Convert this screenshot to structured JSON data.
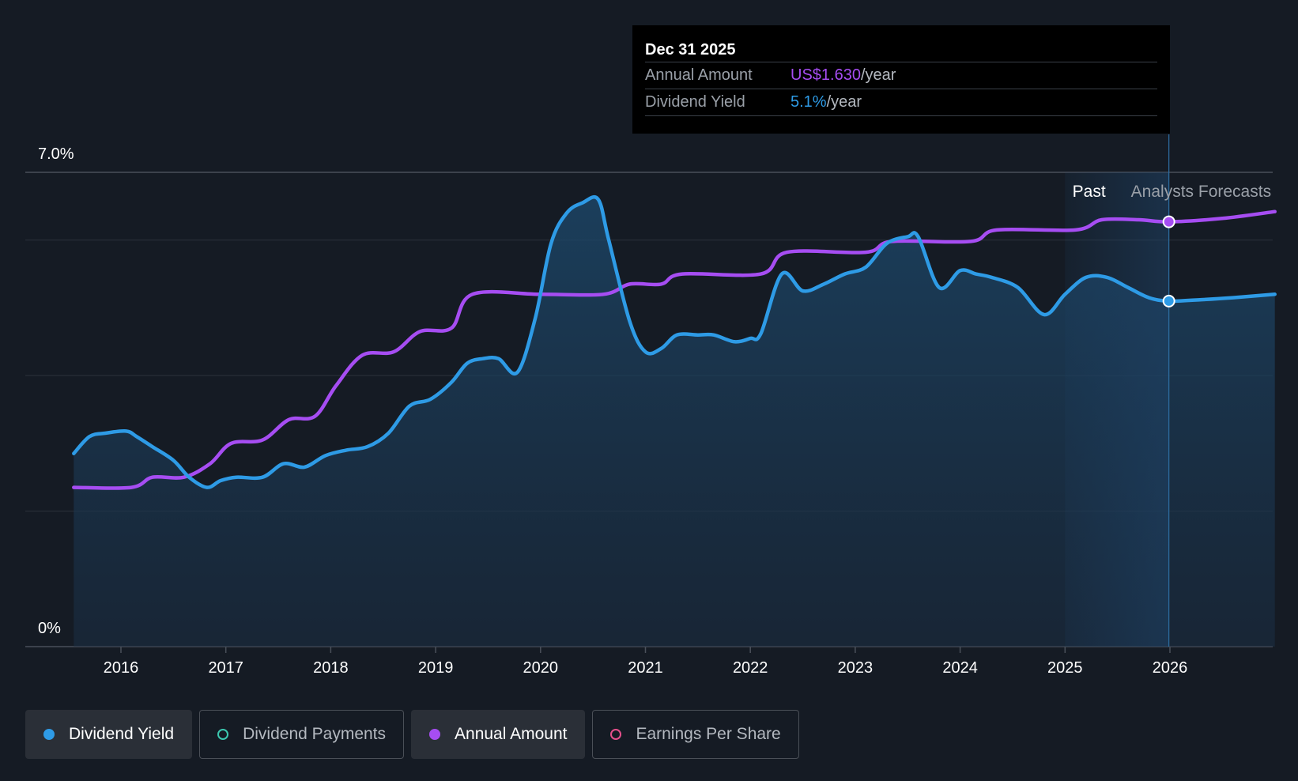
{
  "tooltip": {
    "date": "Dec 31 2025",
    "amount_label": "Annual Amount",
    "amount_value": "US$1.630",
    "yield_label": "Dividend Yield",
    "yield_value": "5.1%",
    "unit": "/year"
  },
  "legend": {
    "items": [
      {
        "label": "Dividend Yield",
        "color": "#2e9be6",
        "active": true,
        "filled": true
      },
      {
        "label": "Dividend Payments",
        "color": "#3cc8b0",
        "active": false,
        "filled": false
      },
      {
        "label": "Annual Amount",
        "color": "#a64df2",
        "active": true,
        "filled": true
      },
      {
        "label": "Earnings Per Share",
        "color": "#e6508c",
        "active": false,
        "filled": false
      }
    ]
  },
  "chart_data": {
    "type": "line",
    "title": "",
    "xlabel": "",
    "ylabel": "",
    "ylim": [
      0,
      7.0
    ],
    "xlim": [
      2015.0,
      2027.0
    ],
    "y_tick_labels": [
      "0%",
      "7.0%"
    ],
    "x_ticks": [
      2016,
      2017,
      2018,
      2019,
      2020,
      2021,
      2022,
      2023,
      2024,
      2025,
      2026
    ],
    "x_tick_labels": [
      "2016",
      "2017",
      "2018",
      "2019",
      "2020",
      "2021",
      "2022",
      "2023",
      "2024",
      "2025",
      "2026"
    ],
    "past_label": "Past",
    "forecast_label": "Analysts Forecasts",
    "forecast_start": 2025.99,
    "shaded_region": [
      2025.0,
      2025.99
    ],
    "colors": {
      "yield": "#2e9be6",
      "amount": "#a64df2"
    },
    "series": [
      {
        "name": "Dividend Yield",
        "unit": "%",
        "points": [
          [
            2015.55,
            2.85
          ],
          [
            2015.7,
            3.1
          ],
          [
            2015.85,
            3.15
          ],
          [
            2016.05,
            3.18
          ],
          [
            2016.15,
            3.1
          ],
          [
            2016.3,
            2.95
          ],
          [
            2016.5,
            2.75
          ],
          [
            2016.65,
            2.5
          ],
          [
            2016.82,
            2.35
          ],
          [
            2016.95,
            2.45
          ],
          [
            2017.1,
            2.5
          ],
          [
            2017.35,
            2.5
          ],
          [
            2017.55,
            2.7
          ],
          [
            2017.75,
            2.65
          ],
          [
            2017.95,
            2.82
          ],
          [
            2018.15,
            2.9
          ],
          [
            2018.35,
            2.95
          ],
          [
            2018.55,
            3.15
          ],
          [
            2018.75,
            3.55
          ],
          [
            2018.95,
            3.65
          ],
          [
            2019.15,
            3.9
          ],
          [
            2019.3,
            4.18
          ],
          [
            2019.45,
            4.25
          ],
          [
            2019.6,
            4.25
          ],
          [
            2019.78,
            4.05
          ],
          [
            2019.95,
            4.85
          ],
          [
            2020.1,
            5.95
          ],
          [
            2020.25,
            6.4
          ],
          [
            2020.4,
            6.55
          ],
          [
            2020.55,
            6.6
          ],
          [
            2020.65,
            6.0
          ],
          [
            2020.85,
            4.8
          ],
          [
            2021.0,
            4.35
          ],
          [
            2021.15,
            4.4
          ],
          [
            2021.3,
            4.6
          ],
          [
            2021.5,
            4.6
          ],
          [
            2021.65,
            4.6
          ],
          [
            2021.85,
            4.5
          ],
          [
            2022.0,
            4.55
          ],
          [
            2022.1,
            4.62
          ],
          [
            2022.3,
            5.5
          ],
          [
            2022.5,
            5.25
          ],
          [
            2022.7,
            5.35
          ],
          [
            2022.9,
            5.5
          ],
          [
            2023.1,
            5.6
          ],
          [
            2023.3,
            5.95
          ],
          [
            2023.5,
            6.05
          ],
          [
            2023.6,
            6.05
          ],
          [
            2023.8,
            5.3
          ],
          [
            2024.0,
            5.55
          ],
          [
            2024.15,
            5.5
          ],
          [
            2024.3,
            5.45
          ],
          [
            2024.55,
            5.3
          ],
          [
            2024.8,
            4.9
          ],
          [
            2025.0,
            5.2
          ],
          [
            2025.2,
            5.45
          ],
          [
            2025.4,
            5.45
          ],
          [
            2025.6,
            5.3
          ],
          [
            2025.8,
            5.15
          ],
          [
            2025.99,
            5.1
          ],
          [
            2026.3,
            5.12
          ],
          [
            2026.6,
            5.15
          ],
          [
            2027.0,
            5.2
          ]
        ]
      },
      {
        "name": "Annual Amount",
        "points": [
          [
            2015.55,
            2.35
          ],
          [
            2016.1,
            2.35
          ],
          [
            2016.3,
            2.5
          ],
          [
            2016.6,
            2.5
          ],
          [
            2016.85,
            2.7
          ],
          [
            2017.05,
            3.0
          ],
          [
            2017.35,
            3.05
          ],
          [
            2017.6,
            3.35
          ],
          [
            2017.85,
            3.4
          ],
          [
            2018.05,
            3.85
          ],
          [
            2018.3,
            4.3
          ],
          [
            2018.6,
            4.35
          ],
          [
            2018.85,
            4.65
          ],
          [
            2019.15,
            4.7
          ],
          [
            2019.35,
            5.2
          ],
          [
            2020.0,
            5.2
          ],
          [
            2020.6,
            5.2
          ],
          [
            2020.85,
            5.35
          ],
          [
            2021.15,
            5.35
          ],
          [
            2021.35,
            5.5
          ],
          [
            2022.1,
            5.5
          ],
          [
            2022.35,
            5.82
          ],
          [
            2023.1,
            5.82
          ],
          [
            2023.35,
            5.98
          ],
          [
            2024.1,
            5.98
          ],
          [
            2024.35,
            6.15
          ],
          [
            2025.1,
            6.15
          ],
          [
            2025.35,
            6.3
          ],
          [
            2025.7,
            6.3
          ],
          [
            2025.99,
            6.27
          ],
          [
            2026.5,
            6.32
          ],
          [
            2027.0,
            6.42
          ]
        ]
      }
    ],
    "highlight_x": 2025.99
  }
}
